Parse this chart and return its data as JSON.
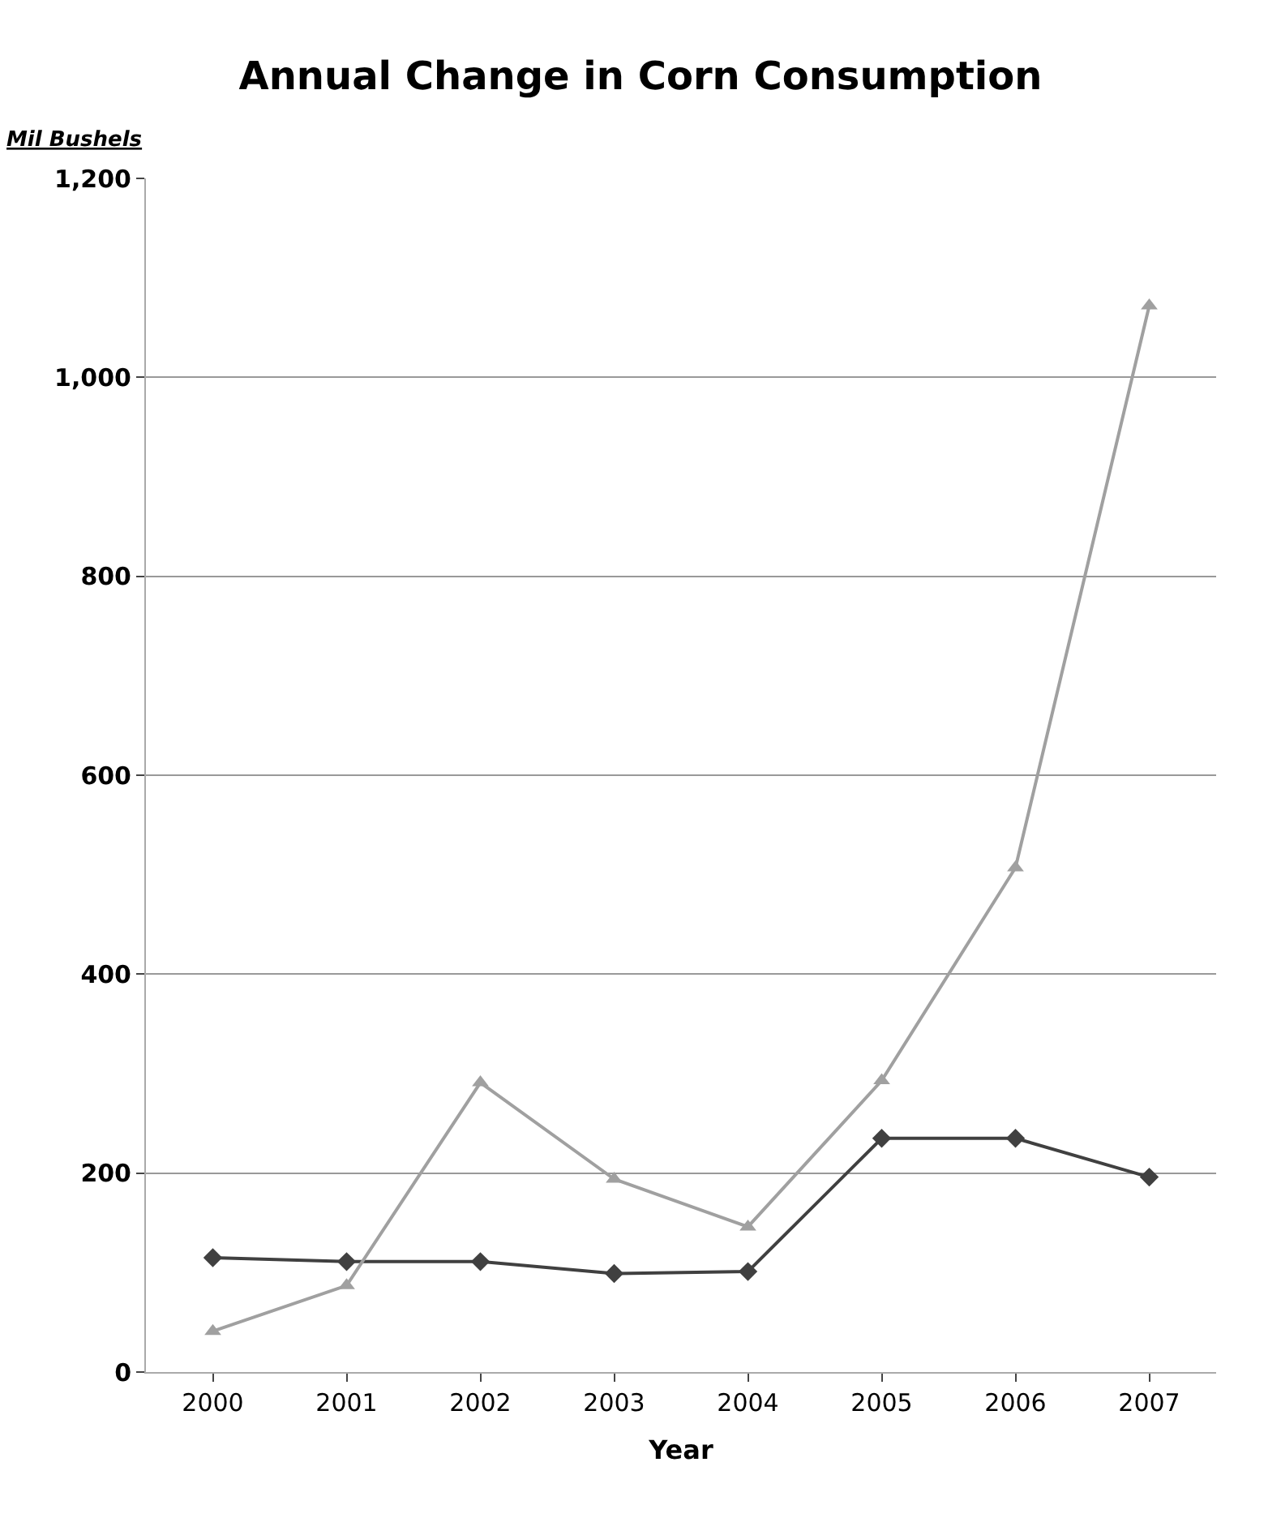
{
  "chart_data": {
    "type": "line",
    "title": "Annual Change in Corn Consumption",
    "xlabel": "Year",
    "ylabel": "Mil Bushels",
    "categories": [
      "2000",
      "2001",
      "2002",
      "2003",
      "2004",
      "2005",
      "2006",
      "2007"
    ],
    "series": [
      {
        "color": "#404040",
        "marker": "diamond",
        "values": [
          115,
          111,
          111,
          99,
          101,
          235,
          235,
          196
        ]
      },
      {
        "color": "#a0a0a0",
        "marker": "triangle",
        "values": [
          41,
          87,
          291,
          194,
          146,
          293,
          507,
          1072
        ]
      }
    ],
    "ylim": [
      0,
      1200
    ],
    "yticks": [
      0,
      200,
      400,
      600,
      800,
      {
        "value": 1000,
        "label": "1,000"
      },
      {
        "value": 1200,
        "label": "1,200"
      }
    ],
    "grid": "y",
    "line_style": "solid"
  }
}
